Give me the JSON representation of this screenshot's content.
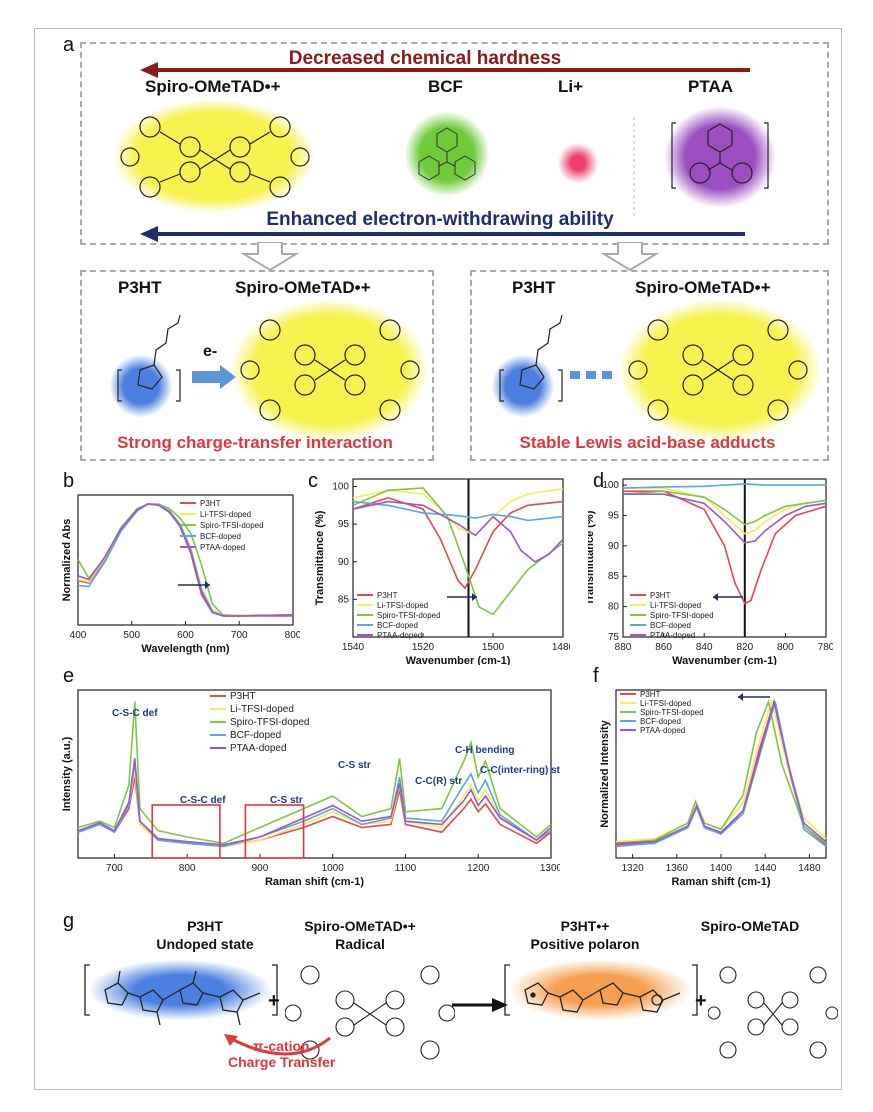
{
  "panel_labels": {
    "a": "a",
    "b": "b",
    "c": "c",
    "d": "d",
    "e": "e",
    "f": "f",
    "g": "g"
  },
  "panel_a": {
    "top_arrow_text": "Decreased chemical hardness",
    "bottom_arrow_text": "Enhanced electron-withdrawing ability",
    "dopants": [
      "Spiro-OMeTAD•+",
      "BCF",
      "Li+",
      "PTAA"
    ],
    "colors": {
      "spiro": "#f5f04a",
      "bcf": "#6fcb3c",
      "li": "#ee3e6d",
      "ptaa": "#9b4fc1",
      "top_arrow": "#8b1a1a",
      "bottom_arrow": "#1f2f6e"
    },
    "left_box": {
      "donor": "P3HT",
      "acceptor": "Spiro-OMeTAD•+",
      "arrow_text": "e-",
      "caption": "Strong charge-transfer interaction"
    },
    "right_box": {
      "donor": "P3HT",
      "acceptor": "Spiro-OMeTAD•+",
      "caption": "Stable Lewis acid-base adducts"
    }
  },
  "legend_full": [
    "P3HT",
    "Li-TFSI-doped",
    "Spiro-TFSI-doped",
    "BCF-doped",
    "PTAA-doped"
  ],
  "series_colors": {
    "P3HT": "#e8474b",
    "Li-TFSI-doped": "#f4ec5a",
    "Spiro-TFSI-doped": "#7cc743",
    "BCF-doped": "#5aa7e0",
    "PTAA-doped": "#9e56c9"
  },
  "chart_data": [
    {
      "id": "b",
      "type": "line",
      "xlabel": "Wavelength (nm)",
      "ylabel": "Normalized Abs",
      "xlim": [
        400,
        800
      ],
      "xticks": [
        400,
        500,
        600,
        700,
        800
      ],
      "series": [
        {
          "name": "P3HT",
          "x": [
            400,
            420,
            450,
            480,
            510,
            530,
            550,
            570,
            590,
            610,
            630,
            650,
            670,
            700,
            800
          ],
          "y": [
            0.32,
            0.3,
            0.5,
            0.75,
            0.92,
            0.97,
            0.96,
            0.9,
            0.78,
            0.55,
            0.2,
            0.05,
            0.02,
            0.02,
            0.02
          ]
        },
        {
          "name": "Li-TFSI-doped",
          "x": [
            400,
            420,
            450,
            480,
            510,
            530,
            550,
            570,
            590,
            610,
            630,
            650,
            670,
            700,
            800
          ],
          "y": [
            0.33,
            0.31,
            0.51,
            0.76,
            0.92,
            0.97,
            0.96,
            0.91,
            0.8,
            0.6,
            0.26,
            0.07,
            0.03,
            0.03,
            0.03
          ]
        },
        {
          "name": "Spiro-TFSI-doped",
          "x": [
            400,
            420,
            450,
            480,
            510,
            530,
            550,
            570,
            590,
            610,
            630,
            650,
            670,
            700,
            800
          ],
          "y": [
            0.5,
            0.34,
            0.52,
            0.77,
            0.93,
            0.97,
            0.97,
            0.93,
            0.85,
            0.72,
            0.45,
            0.12,
            0.03,
            0.02,
            0.03
          ]
        },
        {
          "name": "BCF-doped",
          "x": [
            400,
            420,
            450,
            480,
            510,
            530,
            550,
            570,
            590,
            610,
            630,
            650,
            670,
            700,
            800
          ],
          "y": [
            0.28,
            0.27,
            0.48,
            0.74,
            0.91,
            0.97,
            0.96,
            0.91,
            0.8,
            0.58,
            0.24,
            0.06,
            0.02,
            0.02,
            0.03
          ]
        },
        {
          "name": "PTAA-doped",
          "x": [
            400,
            420,
            450,
            480,
            510,
            530,
            550,
            570,
            590,
            610,
            630,
            650,
            670,
            700,
            800
          ],
          "y": [
            0.36,
            0.33,
            0.52,
            0.76,
            0.92,
            0.97,
            0.96,
            0.9,
            0.78,
            0.56,
            0.22,
            0.05,
            0.02,
            0.02,
            0.03
          ]
        }
      ]
    },
    {
      "id": "c",
      "type": "line",
      "xlabel": "Wavenumber (cm-1)",
      "ylabel": "Transmittance (%)",
      "xlim": [
        1540,
        1480
      ],
      "ylim": [
        80,
        101
      ],
      "xticks": [
        1540,
        1520,
        1500,
        1480
      ],
      "yticks": [
        85,
        90,
        95,
        100
      ],
      "series": [
        {
          "name": "P3HT",
          "x": [
            1540,
            1530,
            1520,
            1515,
            1510,
            1508,
            1505,
            1500,
            1495,
            1490,
            1480
          ],
          "y": [
            97,
            98.5,
            97,
            93,
            87.5,
            86.5,
            89,
            94,
            96.5,
            97.5,
            98
          ]
        },
        {
          "name": "Li-TFSI-doped",
          "x": [
            1540,
            1530,
            1520,
            1515,
            1510,
            1505,
            1500,
            1495,
            1490,
            1480
          ],
          "y": [
            98.5,
            99.5,
            99,
            97,
            94.5,
            93.5,
            96,
            98,
            99,
            99.7
          ]
        },
        {
          "name": "Spiro-TFSI-doped",
          "x": [
            1540,
            1530,
            1520,
            1513,
            1508,
            1504,
            1500,
            1495,
            1490,
            1480
          ],
          "y": [
            97.5,
            99.5,
            99.8,
            96,
            89.5,
            84,
            83,
            86,
            89,
            92.5
          ]
        },
        {
          "name": "BCF-doped",
          "x": [
            1540,
            1530,
            1520,
            1512,
            1508,
            1505,
            1500,
            1495,
            1490,
            1480
          ],
          "y": [
            98,
            97.5,
            96.5,
            96.2,
            96,
            95.8,
            96.3,
            96,
            95.5,
            96
          ]
        },
        {
          "name": "PTAA-doped",
          "x": [
            1540,
            1530,
            1520,
            1510,
            1505,
            1500,
            1495,
            1492,
            1488,
            1484,
            1480
          ],
          "y": [
            97,
            98,
            97.5,
            95,
            93.5,
            96,
            94,
            91.5,
            90,
            91,
            93
          ]
        }
      ],
      "annotation_line_x": 1507
    },
    {
      "id": "d",
      "type": "line",
      "xlabel": "Wavenumber (cm-1)",
      "ylabel": "Transmittance (%)",
      "xlim": [
        880,
        780
      ],
      "ylim": [
        75,
        101
      ],
      "xticks": [
        880,
        860,
        840,
        820,
        800,
        780
      ],
      "yticks": [
        75,
        80,
        85,
        90,
        95,
        100
      ],
      "series": [
        {
          "name": "P3HT",
          "x": [
            880,
            860,
            840,
            830,
            825,
            820,
            817,
            812,
            805,
            795,
            780
          ],
          "y": [
            99,
            99,
            96,
            90,
            84,
            80.5,
            81,
            86,
            92,
            95,
            96.5
          ]
        },
        {
          "name": "Li-TFSI-doped",
          "x": [
            880,
            860,
            840,
            830,
            820,
            815,
            810,
            800,
            790,
            780
          ],
          "y": [
            99.5,
            99.5,
            98,
            95,
            92,
            92.5,
            94,
            96,
            97,
            97.5
          ]
        },
        {
          "name": "Spiro-TFSI-doped",
          "x": [
            880,
            860,
            840,
            830,
            820,
            815,
            810,
            800,
            790,
            780
          ],
          "y": [
            98.5,
            99,
            98,
            96,
            93.5,
            94,
            95,
            96.5,
            97,
            97.5
          ]
        },
        {
          "name": "BCF-doped",
          "x": [
            880,
            860,
            840,
            830,
            820,
            810,
            800,
            790,
            780
          ],
          "y": [
            99.5,
            99.7,
            99.8,
            100,
            100.2,
            100,
            100,
            100,
            100
          ]
        },
        {
          "name": "PTAA-doped",
          "x": [
            880,
            860,
            840,
            830,
            820,
            815,
            810,
            800,
            790,
            780
          ],
          "y": [
            98.5,
            98.5,
            97,
            94,
            90.5,
            90.8,
            92.5,
            95,
            96.5,
            97
          ]
        }
      ],
      "annotation_line_x": 820
    },
    {
      "id": "e",
      "type": "line",
      "xlabel": "Raman shift (cm-1)",
      "ylabel": "Intensity (a.u.)",
      "xlim": [
        650,
        1300
      ],
      "xticks": [
        700,
        800,
        900,
        1000,
        1100,
        1200,
        1300
      ],
      "annotations": [
        "C-S-C def",
        "C-S-C def",
        "C-S str",
        "C-S str",
        "C-C(R) str",
        "C-H bending",
        "C-C(inter-ring) str"
      ],
      "series": [
        {
          "name": "P3HT",
          "x": [
            650,
            680,
            700,
            720,
            728,
            735,
            760,
            800,
            850,
            900,
            960,
            1000,
            1040,
            1080,
            1092,
            1100,
            1150,
            1180,
            1190,
            1200,
            1210,
            1230,
            1280,
            1300
          ],
          "y": [
            0.15,
            0.2,
            0.15,
            0.3,
            0.5,
            0.2,
            0.1,
            0.08,
            0.06,
            0.1,
            0.18,
            0.25,
            0.18,
            0.2,
            0.42,
            0.2,
            0.15,
            0.3,
            0.36,
            0.28,
            0.33,
            0.2,
            0.08,
            0.15
          ]
        },
        {
          "name": "Li-TFSI-doped",
          "x": [
            650,
            680,
            700,
            720,
            728,
            735,
            760,
            800,
            850,
            900,
            960,
            1000,
            1040,
            1080,
            1092,
            1100,
            1150,
            1180,
            1190,
            1200,
            1210,
            1230,
            1280,
            1300
          ],
          "y": [
            0.16,
            0.2,
            0.16,
            0.32,
            0.55,
            0.2,
            0.1,
            0.08,
            0.06,
            0.1,
            0.2,
            0.28,
            0.2,
            0.22,
            0.45,
            0.22,
            0.18,
            0.38,
            0.45,
            0.35,
            0.42,
            0.25,
            0.1,
            0.18
          ]
        },
        {
          "name": "Spiro-TFSI-doped",
          "x": [
            650,
            680,
            700,
            720,
            728,
            735,
            760,
            800,
            850,
            900,
            960,
            1000,
            1040,
            1080,
            1092,
            1100,
            1150,
            1180,
            1190,
            1200,
            1210,
            1230,
            1280,
            1300
          ],
          "y": [
            0.18,
            0.22,
            0.18,
            0.45,
            0.98,
            0.3,
            0.16,
            0.12,
            0.08,
            0.18,
            0.3,
            0.38,
            0.25,
            0.3,
            0.62,
            0.28,
            0.3,
            0.6,
            0.72,
            0.5,
            0.6,
            0.3,
            0.12,
            0.2
          ]
        },
        {
          "name": "BCF-doped",
          "x": [
            650,
            680,
            700,
            720,
            728,
            735,
            760,
            800,
            850,
            900,
            960,
            1000,
            1040,
            1080,
            1092,
            1100,
            1150,
            1180,
            1190,
            1200,
            1210,
            1230,
            1280,
            1300
          ],
          "y": [
            0.15,
            0.2,
            0.15,
            0.32,
            0.6,
            0.22,
            0.1,
            0.08,
            0.06,
            0.12,
            0.22,
            0.3,
            0.2,
            0.24,
            0.5,
            0.24,
            0.22,
            0.45,
            0.52,
            0.4,
            0.48,
            0.26,
            0.1,
            0.16
          ]
        },
        {
          "name": "PTAA-doped",
          "x": [
            650,
            680,
            700,
            720,
            728,
            735,
            760,
            800,
            850,
            900,
            960,
            1000,
            1040,
            1080,
            1092,
            1100,
            1150,
            1180,
            1190,
            1200,
            1210,
            1230,
            1280,
            1300
          ],
          "y": [
            0.16,
            0.21,
            0.16,
            0.34,
            0.62,
            0.22,
            0.11,
            0.09,
            0.07,
            0.12,
            0.24,
            0.32,
            0.22,
            0.25,
            0.46,
            0.22,
            0.2,
            0.35,
            0.42,
            0.32,
            0.38,
            0.24,
            0.1,
            0.18
          ]
        }
      ]
    },
    {
      "id": "f",
      "type": "line",
      "xlabel": "Raman shift (cm-1)",
      "ylabel": "Normalized Intensity",
      "xlim": [
        1305,
        1495
      ],
      "xticks": [
        1320,
        1360,
        1400,
        1440,
        1480
      ],
      "series": [
        {
          "name": "P3HT",
          "x": [
            1305,
            1340,
            1370,
            1378,
            1385,
            1400,
            1420,
            1435,
            1448,
            1460,
            1475,
            1495
          ],
          "y": [
            0.08,
            0.1,
            0.2,
            0.33,
            0.2,
            0.15,
            0.3,
            0.7,
            1.0,
            0.6,
            0.2,
            0.08
          ]
        },
        {
          "name": "Li-TFSI-doped",
          "x": [
            1305,
            1340,
            1370,
            1378,
            1385,
            1400,
            1420,
            1435,
            1446,
            1458,
            1475,
            1495
          ],
          "y": [
            0.1,
            0.12,
            0.22,
            0.34,
            0.22,
            0.18,
            0.35,
            0.75,
            1.0,
            0.65,
            0.25,
            0.12
          ]
        },
        {
          "name": "Spiro-TFSI-doped",
          "x": [
            1305,
            1340,
            1370,
            1377,
            1385,
            1400,
            1420,
            1432,
            1443,
            1455,
            1475,
            1495
          ],
          "y": [
            0.09,
            0.11,
            0.22,
            0.36,
            0.22,
            0.18,
            0.4,
            0.8,
            1.0,
            0.6,
            0.2,
            0.09
          ]
        },
        {
          "name": "BCF-doped",
          "x": [
            1305,
            1340,
            1370,
            1378,
            1385,
            1400,
            1420,
            1436,
            1449,
            1461,
            1475,
            1495
          ],
          "y": [
            0.07,
            0.09,
            0.19,
            0.32,
            0.19,
            0.15,
            0.28,
            0.68,
            1.0,
            0.6,
            0.18,
            0.07
          ]
        },
        {
          "name": "PTAA-doped",
          "x": [
            1305,
            1340,
            1370,
            1378,
            1385,
            1400,
            1420,
            1436,
            1448,
            1460,
            1475,
            1495
          ],
          "y": [
            0.09,
            0.1,
            0.2,
            0.33,
            0.2,
            0.16,
            0.3,
            0.7,
            1.0,
            0.62,
            0.22,
            0.1
          ]
        }
      ]
    }
  ],
  "panel_g": {
    "p3ht_title": "P3HT",
    "p3ht_sub": "Undoped state",
    "spiro_title": "Spiro-OMeTAD•+",
    "spiro_sub": "Radical",
    "polaron_title": "P3HT•+",
    "polaron_sub": "Positive polaron",
    "spiro_neutral": "Spiro-OMeTAD",
    "pi_cation": "π-cation",
    "charge_transfer": "Charge Transfer",
    "plus": "+"
  }
}
